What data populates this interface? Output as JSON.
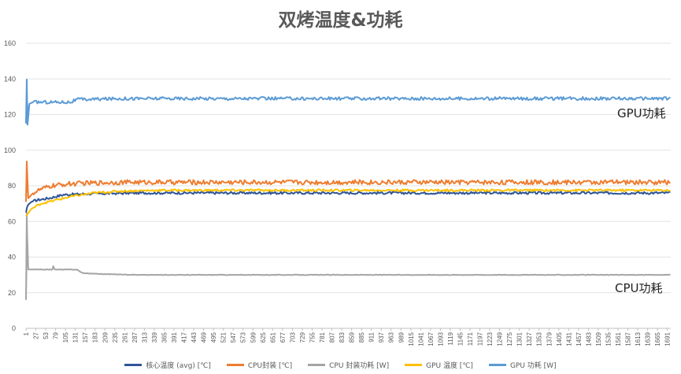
{
  "chart_data": {
    "type": "line",
    "title": "双烤温度&功耗",
    "ylim": [
      0,
      160
    ],
    "yticks": [
      "0",
      "20",
      "40",
      "60",
      "80",
      "100",
      "120",
      "140",
      "160"
    ],
    "xticks": [
      "1",
      "27",
      "53",
      "79",
      "105",
      "131",
      "157",
      "183",
      "209",
      "235",
      "261",
      "287",
      "313",
      "339",
      "365",
      "391",
      "417",
      "443",
      "469",
      "495",
      "521",
      "547",
      "573",
      "599",
      "625",
      "651",
      "677",
      "703",
      "729",
      "755",
      "781",
      "807",
      "833",
      "859",
      "885",
      "911",
      "937",
      "963",
      "989",
      "1015",
      "1041",
      "1067",
      "1093",
      "1119",
      "1145",
      "1171",
      "1197",
      "1223",
      "1249",
      "1275",
      "1301",
      "1327",
      "1353",
      "1379",
      "1405",
      "1431",
      "1457",
      "1483",
      "1509",
      "1535",
      "1561",
      "1587",
      "1613",
      "1639",
      "1665",
      "1691"
    ],
    "x_range": [
      1,
      1700
    ],
    "grid": true,
    "legend_position": "bottom",
    "annotations": [
      "GPU功耗",
      "CPU功耗"
    ],
    "series": [
      {
        "name": "核心温度 (avg) [℃]",
        "color": "#2f5597",
        "points": [
          [
            1,
            65
          ],
          [
            5,
            69
          ],
          [
            15,
            71
          ],
          [
            30,
            72
          ],
          [
            60,
            73
          ],
          [
            100,
            75
          ],
          [
            160,
            75.5
          ],
          [
            300,
            76
          ],
          [
            600,
            76
          ],
          [
            1000,
            76
          ],
          [
            1300,
            76
          ],
          [
            1700,
            76
          ]
        ]
      },
      {
        "name": "CPU封装 [℃]",
        "color": "#ed7d31",
        "points": [
          [
            1,
            71
          ],
          [
            3,
            94
          ],
          [
            7,
            73
          ],
          [
            20,
            76
          ],
          [
            40,
            78
          ],
          [
            70,
            80
          ],
          [
            110,
            81
          ],
          [
            160,
            81.5
          ],
          [
            250,
            82
          ],
          [
            400,
            82
          ],
          [
            700,
            82
          ],
          [
            1100,
            82
          ],
          [
            1400,
            82
          ],
          [
            1700,
            82
          ]
        ]
      },
      {
        "name": "CPU 封装功耗 [W]",
        "color": "#a5a5a5",
        "points": [
          [
            1,
            16
          ],
          [
            3,
            65
          ],
          [
            6,
            33
          ],
          [
            40,
            33
          ],
          [
            70,
            33
          ],
          [
            72,
            36
          ],
          [
            75,
            33
          ],
          [
            135,
            33
          ],
          [
            150,
            31
          ],
          [
            200,
            30.5
          ],
          [
            300,
            30
          ],
          [
            800,
            30
          ],
          [
            1500,
            30
          ],
          [
            1700,
            30
          ]
        ]
      },
      {
        "name": "GPU 温度 [℃]",
        "color": "#ffc000",
        "points": [
          [
            1,
            63
          ],
          [
            15,
            67
          ],
          [
            40,
            70
          ],
          [
            80,
            72
          ],
          [
            120,
            74
          ],
          [
            180,
            76
          ],
          [
            250,
            77
          ],
          [
            350,
            77.5
          ],
          [
            600,
            77.5
          ],
          [
            1000,
            77.5
          ],
          [
            1300,
            77.5
          ],
          [
            1700,
            77.5
          ]
        ]
      },
      {
        "name": "GPU 功耗 [W]",
        "color": "#5b9bd5",
        "points": [
          [
            1,
            115
          ],
          [
            3,
            140
          ],
          [
            5,
            114
          ],
          [
            10,
            126
          ],
          [
            20,
            127
          ],
          [
            60,
            127
          ],
          [
            120,
            127
          ],
          [
            135,
            128.5
          ],
          [
            160,
            128.5
          ],
          [
            250,
            129
          ],
          [
            400,
            129
          ],
          [
            700,
            129
          ],
          [
            1000,
            129
          ],
          [
            1300,
            129
          ],
          [
            1700,
            129
          ]
        ]
      }
    ]
  }
}
